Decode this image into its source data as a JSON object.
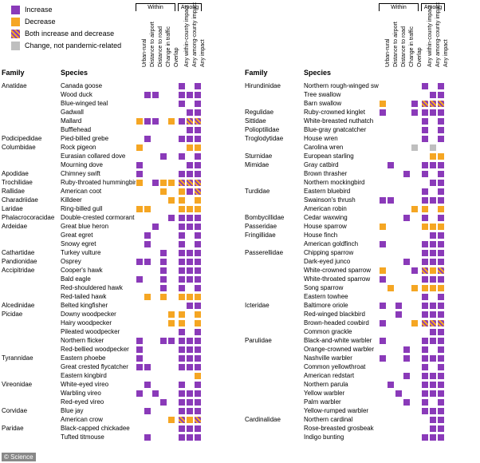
{
  "colors": {
    "increase": "#8a3ab9",
    "decrease": "#f5a623",
    "both_stripe_a": "#8a3ab9",
    "both_stripe_b": "#f5a623",
    "nonpandemic": "#bfbfbf",
    "blank": "#ffffff",
    "text": "#000000",
    "background": "#ffffff"
  },
  "legend": [
    {
      "label": "Increase",
      "type": "increase"
    },
    {
      "label": "Decrease",
      "type": "decrease"
    },
    {
      "label": "Both increase and decrease",
      "type": "both"
    },
    {
      "label": "Change, not pandemic-related",
      "type": "nonpandemic"
    }
  ],
  "columns": {
    "headers": [
      "Urban-rural",
      "Distance to airport",
      "Distance to road",
      "Change in traffic",
      "Overlap",
      "Any within-county impact",
      "Any among-county impact",
      "Any impact"
    ],
    "group_within": "Within",
    "group_among": "Among",
    "grouping": [
      [
        0,
        1,
        2,
        3,
        4
      ],
      [
        5,
        6,
        7
      ]
    ]
  },
  "axis": {
    "family": "Family",
    "species": "Species"
  },
  "watermark": "© Science",
  "left": [
    {
      "f": "Anatidae",
      "s": "Canada goose",
      "v": [
        "",
        "",
        "",
        "",
        "",
        "I",
        "",
        "I"
      ]
    },
    {
      "f": "",
      "s": "Wood duck",
      "v": [
        "",
        "I",
        "I",
        "",
        "",
        "I",
        "I",
        "I"
      ]
    },
    {
      "f": "",
      "s": "Blue-winged teal",
      "v": [
        "",
        "",
        "",
        "",
        "",
        "I",
        "",
        "I"
      ]
    },
    {
      "f": "",
      "s": "Gadwall",
      "v": [
        "",
        "",
        "",
        "",
        "",
        "",
        "I",
        "I"
      ]
    },
    {
      "f": "",
      "s": "Mallard",
      "v": [
        "D",
        "I",
        "I",
        "",
        "D",
        "I",
        "B",
        "B"
      ]
    },
    {
      "f": "",
      "s": "Bufflehead",
      "v": [
        "",
        "",
        "",
        "",
        "",
        "",
        "I",
        "I"
      ]
    },
    {
      "f": "Podicipedidae",
      "s": "Pied-billed grebe",
      "v": [
        "",
        "I",
        "",
        "",
        "",
        "I",
        "I",
        "I"
      ]
    },
    {
      "f": "Columbidae",
      "s": "Rock pigeon",
      "v": [
        "D",
        "",
        "",
        "",
        "",
        "",
        "D",
        "D"
      ]
    },
    {
      "f": "",
      "s": "Eurasian collared dove",
      "v": [
        "",
        "",
        "",
        "I",
        "",
        "I",
        "",
        "I"
      ]
    },
    {
      "f": "",
      "s": "Mourning dove",
      "v": [
        "I",
        "",
        "",
        "",
        "",
        "",
        "I",
        "I"
      ]
    },
    {
      "f": "Apodidae",
      "s": "Chimney swift",
      "v": [
        "I",
        "",
        "",
        "",
        "",
        "I",
        "I",
        "I"
      ]
    },
    {
      "f": "Trochilidae",
      "s": "Ruby-throated hummingbird",
      "v": [
        "D",
        "",
        "I",
        "D",
        "D",
        "B",
        "B",
        "B"
      ]
    },
    {
      "f": "Rallidae",
      "s": "American coot",
      "v": [
        "",
        "",
        "",
        "D",
        "",
        "D",
        "I",
        "B"
      ]
    },
    {
      "f": "Charadriidae",
      "s": "Killdeer",
      "v": [
        "",
        "",
        "",
        "",
        "D",
        "D",
        "",
        "D"
      ]
    },
    {
      "f": "Laridae",
      "s": "Ring-billed gull",
      "v": [
        "D",
        "D",
        "",
        "",
        "",
        "D",
        "D",
        "D"
      ]
    },
    {
      "f": "Phalacrocoracidae",
      "s": "Double-crested cormorant",
      "v": [
        "",
        "",
        "",
        "",
        "I",
        "I",
        "I",
        "I"
      ]
    },
    {
      "f": "Ardeidae",
      "s": "Great blue heron",
      "v": [
        "",
        "",
        "I",
        "",
        "",
        "I",
        "I",
        "I"
      ]
    },
    {
      "f": "",
      "s": "Great egret",
      "v": [
        "",
        "I",
        "",
        "",
        "",
        "I",
        "",
        "I"
      ]
    },
    {
      "f": "",
      "s": "Snowy egret",
      "v": [
        "",
        "I",
        "",
        "",
        "",
        "I",
        "",
        "I"
      ]
    },
    {
      "f": "Cathartidae",
      "s": "Turkey vulture",
      "v": [
        "",
        "",
        "",
        "I",
        "",
        "I",
        "I",
        "I"
      ]
    },
    {
      "f": "Pandionidae",
      "s": "Osprey",
      "v": [
        "I",
        "I",
        "",
        "I",
        "",
        "I",
        "I",
        "I"
      ]
    },
    {
      "f": "Accipitridae",
      "s": "Cooper's hawk",
      "v": [
        "",
        "",
        "",
        "I",
        "",
        "I",
        "I",
        "I"
      ]
    },
    {
      "f": "",
      "s": "Bald eagle",
      "v": [
        "I",
        "",
        "",
        "I",
        "",
        "I",
        "I",
        "I"
      ]
    },
    {
      "f": "",
      "s": "Red-shouldered hawk",
      "v": [
        "",
        "",
        "",
        "I",
        "",
        "I",
        "",
        "I"
      ]
    },
    {
      "f": "",
      "s": "Red-tailed hawk",
      "v": [
        "",
        "D",
        "",
        "D",
        "",
        "D",
        "D",
        "D"
      ]
    },
    {
      "f": "Alcedinidae",
      "s": "Belted kingfisher",
      "v": [
        "",
        "",
        "",
        "",
        "",
        "",
        "I",
        "I"
      ]
    },
    {
      "f": "Picidae",
      "s": "Downy woodpecker",
      "v": [
        "",
        "",
        "",
        "",
        "D",
        "D",
        "",
        "D"
      ]
    },
    {
      "f": "",
      "s": "Hairy woodpecker",
      "v": [
        "",
        "",
        "",
        "",
        "D",
        "D",
        "",
        "D"
      ]
    },
    {
      "f": "",
      "s": "Pileated woodpecker",
      "v": [
        "",
        "",
        "",
        "",
        "",
        "I",
        "",
        "I"
      ]
    },
    {
      "f": "",
      "s": "Northern flicker",
      "v": [
        "I",
        "",
        "",
        "I",
        "I",
        "I",
        "I",
        "I"
      ]
    },
    {
      "f": "",
      "s": "Red-bellied woodpecker",
      "v": [
        "I",
        "",
        "",
        "",
        "",
        "I",
        "I",
        "I"
      ]
    },
    {
      "f": "Tyrannidae",
      "s": "Eastern phoebe",
      "v": [
        "I",
        "",
        "",
        "",
        "",
        "I",
        "I",
        "I"
      ]
    },
    {
      "f": "",
      "s": "Great crested flycatcher",
      "v": [
        "I",
        "I",
        "",
        "",
        "",
        "I",
        "I",
        "I"
      ]
    },
    {
      "f": "",
      "s": "Eastern kingbird",
      "v": [
        "",
        "",
        "",
        "",
        "",
        "",
        "",
        "D"
      ]
    },
    {
      "f": "Vireonidae",
      "s": "White-eyed vireo",
      "v": [
        "",
        "I",
        "",
        "",
        "",
        "I",
        "",
        "I"
      ]
    },
    {
      "f": "",
      "s": "Warbling vireo",
      "v": [
        "I",
        "",
        "I",
        "",
        "",
        "I",
        "I",
        "I"
      ]
    },
    {
      "f": "",
      "s": "Red-eyed vireo",
      "v": [
        "",
        "",
        "",
        "I",
        "",
        "I",
        "I",
        "I"
      ]
    },
    {
      "f": "Corvidae",
      "s": "Blue jay",
      "v": [
        "",
        "I",
        "",
        "",
        "",
        "I",
        "I",
        "I"
      ]
    },
    {
      "f": "",
      "s": "American crow",
      "v": [
        "",
        "",
        "",
        "",
        "D",
        "B",
        "D",
        "B"
      ]
    },
    {
      "f": "Paridae",
      "s": "Black-capped chickadee",
      "v": [
        "",
        "",
        "",
        "",
        "",
        "I",
        "I",
        "I"
      ]
    },
    {
      "f": "",
      "s": "Tufted titmouse",
      "v": [
        "",
        "I",
        "",
        "",
        "",
        "I",
        "I",
        "I"
      ]
    }
  ],
  "right": [
    {
      "f": "Hirundinidae",
      "s": "Northern rough-winged swallow",
      "v": [
        "",
        "",
        "",
        "",
        "",
        "I",
        "",
        "I"
      ]
    },
    {
      "f": "",
      "s": "Tree swallow",
      "v": [
        "",
        "",
        "",
        "",
        "",
        "",
        "I",
        "I"
      ]
    },
    {
      "f": "",
      "s": "Barn swallow",
      "v": [
        "D",
        "",
        "",
        "",
        "I",
        "B",
        "B",
        "B"
      ]
    },
    {
      "f": "Regulidae",
      "s": "Ruby-crowned kinglet",
      "v": [
        "I",
        "",
        "",
        "",
        "I",
        "I",
        "I",
        "I"
      ]
    },
    {
      "f": "Sittidae",
      "s": "White-breasted nuthatch",
      "v": [
        "",
        "",
        "",
        "",
        "",
        "I",
        "",
        "I"
      ]
    },
    {
      "f": "Polioptilidae",
      "s": "Blue-gray gnatcatcher",
      "v": [
        "",
        "",
        "",
        "",
        "",
        "I",
        "",
        "I"
      ]
    },
    {
      "f": "Troglodytidae",
      "s": "House wren",
      "v": [
        "",
        "",
        "",
        "",
        "",
        "I",
        "",
        "I"
      ]
    },
    {
      "f": "",
      "s": "Carolina wren",
      "v": [
        "",
        "",
        "",
        "",
        "N",
        "",
        "N",
        ""
      ]
    },
    {
      "f": "Sturnidae",
      "s": "European starling",
      "v": [
        "",
        "",
        "",
        "",
        "",
        "",
        "D",
        "D"
      ]
    },
    {
      "f": "Mimidae",
      "s": "Gray catbird",
      "v": [
        "",
        "I",
        "",
        "",
        "",
        "I",
        "I",
        "I"
      ]
    },
    {
      "f": "",
      "s": "Brown thrasher",
      "v": [
        "",
        "",
        "",
        "I",
        "",
        "I",
        "",
        "I"
      ]
    },
    {
      "f": "",
      "s": "Northern mockingbird",
      "v": [
        "",
        "",
        "",
        "",
        "",
        "",
        "I",
        "I"
      ]
    },
    {
      "f": "Turdidae",
      "s": "Eastern bluebird",
      "v": [
        "",
        "",
        "",
        "",
        "",
        "I",
        "",
        "I"
      ]
    },
    {
      "f": "",
      "s": "Swainson's thrush",
      "v": [
        "I",
        "I",
        "",
        "",
        "",
        "I",
        "I",
        "I"
      ]
    },
    {
      "f": "",
      "s": "American robin",
      "v": [
        "",
        "",
        "",
        "",
        "D",
        "D",
        "",
        "D"
      ]
    },
    {
      "f": "Bombycillidae",
      "s": "Cedar waxwing",
      "v": [
        "",
        "",
        "",
        "I",
        "",
        "I",
        "",
        "I"
      ]
    },
    {
      "f": "Passeridae",
      "s": "House sparrow",
      "v": [
        "D",
        "",
        "",
        "",
        "",
        "D",
        "D",
        "D"
      ]
    },
    {
      "f": "Fringillidae",
      "s": "House finch",
      "v": [
        "",
        "",
        "",
        "",
        "",
        "",
        "I",
        "I"
      ]
    },
    {
      "f": "",
      "s": "American goldfinch",
      "v": [
        "I",
        "",
        "",
        "",
        "",
        "I",
        "I",
        "I"
      ]
    },
    {
      "f": "Passerellidae",
      "s": "Chipping sparrow",
      "v": [
        "",
        "",
        "",
        "",
        "",
        "I",
        "I",
        "I"
      ]
    },
    {
      "f": "",
      "s": "Dark-eyed junco",
      "v": [
        "",
        "",
        "",
        "I",
        "",
        "I",
        "I",
        "I"
      ]
    },
    {
      "f": "",
      "s": "White-crowned sparrow",
      "v": [
        "D",
        "",
        "",
        "",
        "I",
        "B",
        "D",
        "B"
      ]
    },
    {
      "f": "",
      "s": "White-throated sparrow",
      "v": [
        "I",
        "",
        "",
        "",
        "",
        "I",
        "I",
        "I"
      ]
    },
    {
      "f": "",
      "s": "Song sparrow",
      "v": [
        "",
        "D",
        "",
        "",
        "D",
        "D",
        "D",
        "D"
      ]
    },
    {
      "f": "",
      "s": "Eastern towhee",
      "v": [
        "",
        "",
        "",
        "",
        "",
        "I",
        "",
        "I"
      ]
    },
    {
      "f": "Icteridae",
      "s": "Baltimore oriole",
      "v": [
        "I",
        "",
        "I",
        "",
        "",
        "I",
        "I",
        "I"
      ]
    },
    {
      "f": "",
      "s": "Red-winged blackbird",
      "v": [
        "",
        "",
        "I",
        "",
        "",
        "I",
        "I",
        "I"
      ]
    },
    {
      "f": "",
      "s": "Brown-headed cowbird",
      "v": [
        "I",
        "",
        "",
        "",
        "D",
        "B",
        "B",
        "B"
      ]
    },
    {
      "f": "",
      "s": "Common grackle",
      "v": [
        "",
        "",
        "",
        "",
        "",
        "",
        "I",
        "I"
      ]
    },
    {
      "f": "Parulidae",
      "s": "Black-and-white warbler",
      "v": [
        "I",
        "",
        "",
        "",
        "",
        "I",
        "I",
        "I"
      ]
    },
    {
      "f": "",
      "s": "Orange-crowned warbler",
      "v": [
        "",
        "",
        "",
        "I",
        "",
        "I",
        "",
        "I"
      ]
    },
    {
      "f": "",
      "s": "Nashville warbler",
      "v": [
        "I",
        "",
        "",
        "I",
        "",
        "I",
        "I",
        "I"
      ]
    },
    {
      "f": "",
      "s": "Common yellowthroat",
      "v": [
        "",
        "",
        "",
        "",
        "",
        "I",
        "",
        "I"
      ]
    },
    {
      "f": "",
      "s": "American redstart",
      "v": [
        "",
        "",
        "",
        "I",
        "",
        "I",
        "I",
        "I"
      ]
    },
    {
      "f": "",
      "s": "Northern parula",
      "v": [
        "",
        "I",
        "",
        "",
        "",
        "I",
        "I",
        "I"
      ]
    },
    {
      "f": "",
      "s": "Yellow warbler",
      "v": [
        "",
        "",
        "I",
        "",
        "",
        "I",
        "I",
        "I"
      ]
    },
    {
      "f": "",
      "s": "Palm warbler",
      "v": [
        "",
        "",
        "",
        "I",
        "",
        "I",
        "",
        "I"
      ]
    },
    {
      "f": "",
      "s": "Yellow-rumped warbler",
      "v": [
        "",
        "",
        "",
        "",
        "",
        "I",
        "I",
        "I"
      ]
    },
    {
      "f": "Cardinalidae",
      "s": "Northern cardinal",
      "v": [
        "",
        "",
        "",
        "",
        "",
        "",
        "I",
        "I"
      ]
    },
    {
      "f": "",
      "s": "Rose-breasted grosbeak",
      "v": [
        "",
        "",
        "",
        "",
        "",
        "",
        "I",
        "I"
      ]
    },
    {
      "f": "",
      "s": "Indigo bunting",
      "v": [
        "",
        "",
        "",
        "",
        "",
        "I",
        "I",
        "I"
      ]
    }
  ]
}
